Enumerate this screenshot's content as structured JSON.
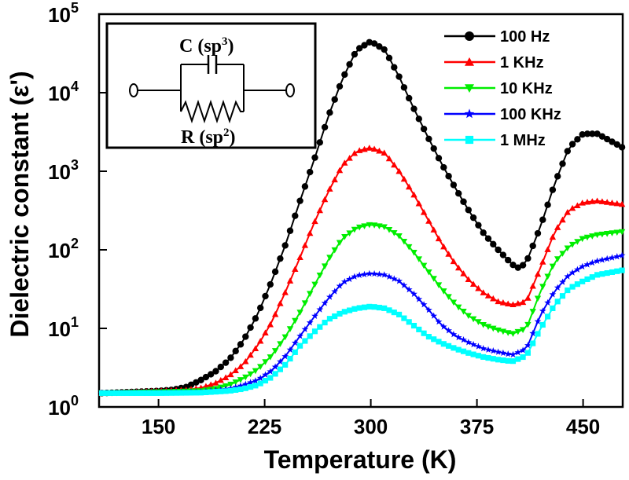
{
  "chart_data": {
    "type": "line",
    "ylabel": "Dielectric constant (ε')",
    "xlabel": "Temperature (K)",
    "yscale": "log",
    "xlim": [
      108,
      478
    ],
    "ylim": [
      1,
      100000
    ],
    "x_ticks": [
      150,
      225,
      300,
      375,
      450
    ],
    "y_ticks": [
      {
        "base": "10",
        "exp": "0",
        "value": 1
      },
      {
        "base": "10",
        "exp": "1",
        "value": 10
      },
      {
        "base": "10",
        "exp": "2",
        "value": 100
      },
      {
        "base": "10",
        "exp": "3",
        "value": 1000
      },
      {
        "base": "10",
        "exp": "4",
        "value": 10000
      },
      {
        "base": "10",
        "exp": "5",
        "value": 100000
      }
    ],
    "series": [
      {
        "name": "100 Hz",
        "color": "#000000",
        "marker": "circle",
        "points": [
          [
            110,
            1.5
          ],
          [
            130,
            1.55
          ],
          [
            150,
            1.6
          ],
          [
            160,
            1.65
          ],
          [
            170,
            1.8
          ],
          [
            180,
            2.2
          ],
          [
            190,
            2.8
          ],
          [
            200,
            4
          ],
          [
            210,
            7
          ],
          [
            220,
            15
          ],
          [
            230,
            40
          ],
          [
            240,
            120
          ],
          [
            250,
            420
          ],
          [
            260,
            1400
          ],
          [
            270,
            5000
          ],
          [
            280,
            15000
          ],
          [
            290,
            35000
          ],
          [
            300,
            45000
          ],
          [
            310,
            35000
          ],
          [
            320,
            16000
          ],
          [
            330,
            6500
          ],
          [
            340,
            2800
          ],
          [
            350,
            1250
          ],
          [
            360,
            600
          ],
          [
            370,
            300
          ],
          [
            380,
            160
          ],
          [
            390,
            100
          ],
          [
            400,
            65
          ],
          [
            405,
            58
          ],
          [
            410,
            70
          ],
          [
            420,
            200
          ],
          [
            430,
            700
          ],
          [
            440,
            2000
          ],
          [
            450,
            3000
          ],
          [
            460,
            3000
          ],
          [
            470,
            2400
          ],
          [
            478,
            2000
          ]
        ]
      },
      {
        "name": "1 KHz",
        "color": "#ff0000",
        "marker": "triangle-up",
        "points": [
          [
            110,
            1.5
          ],
          [
            130,
            1.55
          ],
          [
            150,
            1.6
          ],
          [
            170,
            1.65
          ],
          [
            180,
            1.75
          ],
          [
            190,
            2
          ],
          [
            200,
            2.5
          ],
          [
            210,
            3.5
          ],
          [
            220,
            6
          ],
          [
            230,
            12
          ],
          [
            240,
            30
          ],
          [
            250,
            80
          ],
          [
            260,
            220
          ],
          [
            270,
            550
          ],
          [
            280,
            1200
          ],
          [
            290,
            1800
          ],
          [
            300,
            2000
          ],
          [
            310,
            1700
          ],
          [
            320,
            1000
          ],
          [
            330,
            520
          ],
          [
            340,
            250
          ],
          [
            350,
            120
          ],
          [
            360,
            65
          ],
          [
            370,
            40
          ],
          [
            380,
            28
          ],
          [
            390,
            22
          ],
          [
            400,
            20
          ],
          [
            410,
            22
          ],
          [
            420,
            60
          ],
          [
            430,
            170
          ],
          [
            440,
            320
          ],
          [
            450,
            400
          ],
          [
            460,
            420
          ],
          [
            478,
            380
          ]
        ]
      },
      {
        "name": "10 KHz",
        "color": "#00ee00",
        "marker": "triangle-down",
        "points": [
          [
            110,
            1.5
          ],
          [
            150,
            1.55
          ],
          [
            180,
            1.6
          ],
          [
            190,
            1.7
          ],
          [
            200,
            1.9
          ],
          [
            210,
            2.3
          ],
          [
            220,
            3
          ],
          [
            230,
            4.5
          ],
          [
            240,
            8
          ],
          [
            250,
            16
          ],
          [
            260,
            35
          ],
          [
            270,
            75
          ],
          [
            280,
            140
          ],
          [
            290,
            190
          ],
          [
            300,
            210
          ],
          [
            310,
            195
          ],
          [
            320,
            150
          ],
          [
            330,
            95
          ],
          [
            340,
            55
          ],
          [
            350,
            32
          ],
          [
            360,
            20
          ],
          [
            370,
            14
          ],
          [
            380,
            11
          ],
          [
            390,
            9.5
          ],
          [
            400,
            8.5
          ],
          [
            410,
            10
          ],
          [
            420,
            30
          ],
          [
            430,
            70
          ],
          [
            440,
            110
          ],
          [
            450,
            140
          ],
          [
            460,
            155
          ],
          [
            478,
            170
          ]
        ]
      },
      {
        "name": "100 KHz",
        "color": "#0000ff",
        "marker": "star",
        "points": [
          [
            110,
            1.5
          ],
          [
            150,
            1.52
          ],
          [
            180,
            1.55
          ],
          [
            200,
            1.7
          ],
          [
            210,
            1.9
          ],
          [
            220,
            2.2
          ],
          [
            230,
            2.9
          ],
          [
            240,
            4.5
          ],
          [
            250,
            8
          ],
          [
            260,
            14
          ],
          [
            270,
            24
          ],
          [
            280,
            38
          ],
          [
            290,
            47
          ],
          [
            300,
            50
          ],
          [
            310,
            48
          ],
          [
            320,
            40
          ],
          [
            330,
            28
          ],
          [
            340,
            18
          ],
          [
            350,
            11
          ],
          [
            360,
            8
          ],
          [
            370,
            6.5
          ],
          [
            380,
            5.5
          ],
          [
            390,
            5
          ],
          [
            400,
            4.6
          ],
          [
            410,
            5.5
          ],
          [
            420,
            15
          ],
          [
            430,
            30
          ],
          [
            440,
            48
          ],
          [
            450,
            62
          ],
          [
            460,
            72
          ],
          [
            478,
            85
          ]
        ]
      },
      {
        "name": "1 MHz",
        "color": "#00ffff",
        "marker": "square",
        "points": [
          [
            110,
            1.5
          ],
          [
            150,
            1.5
          ],
          [
            180,
            1.52
          ],
          [
            200,
            1.6
          ],
          [
            210,
            1.7
          ],
          [
            220,
            1.9
          ],
          [
            230,
            2.4
          ],
          [
            240,
            3.5
          ],
          [
            250,
            6
          ],
          [
            260,
            9
          ],
          [
            270,
            13
          ],
          [
            280,
            16
          ],
          [
            290,
            18
          ],
          [
            300,
            19
          ],
          [
            310,
            18
          ],
          [
            320,
            15
          ],
          [
            330,
            11
          ],
          [
            340,
            8
          ],
          [
            350,
            6.5
          ],
          [
            360,
            5.5
          ],
          [
            370,
            4.8
          ],
          [
            380,
            4.3
          ],
          [
            390,
            4
          ],
          [
            400,
            3.8
          ],
          [
            410,
            4.5
          ],
          [
            420,
            10
          ],
          [
            430,
            20
          ],
          [
            440,
            32
          ],
          [
            450,
            40
          ],
          [
            460,
            48
          ],
          [
            478,
            55
          ]
        ]
      }
    ],
    "inset": {
      "capacitor_label": "C (sp",
      "capacitor_sup": "3",
      "resistor_label": "R (sp",
      "resistor_sup": "2",
      "closing": ")"
    }
  }
}
